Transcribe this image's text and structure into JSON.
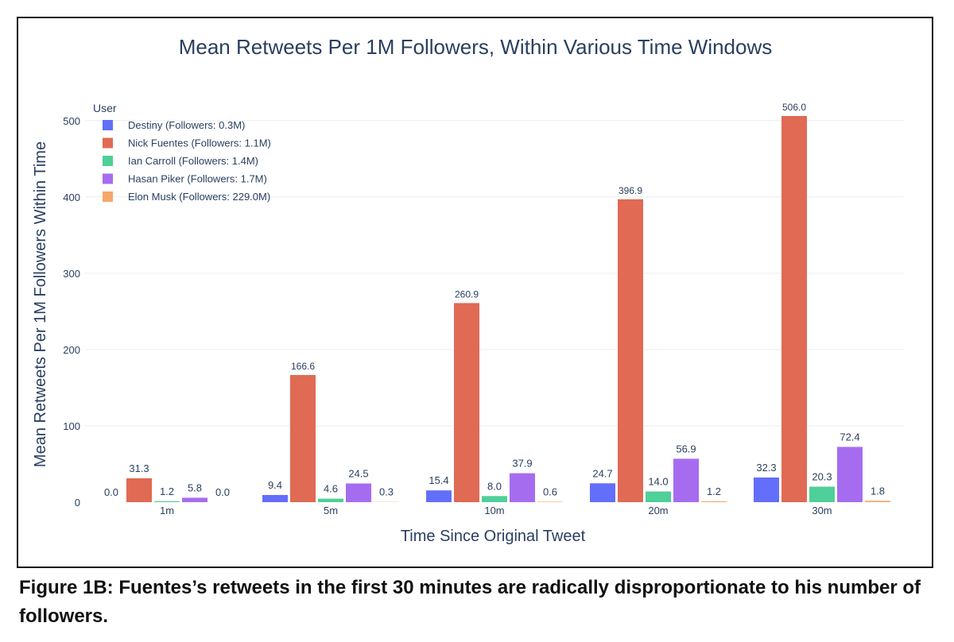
{
  "chart_data": {
    "type": "bar",
    "title": "Mean Retweets Per 1M Followers, Within Various Time Windows",
    "xlabel": "Time Since Original Tweet",
    "ylabel": "Mean Retweets Per 1M Followers Within Time",
    "categories": [
      "1m",
      "5m",
      "10m",
      "20m",
      "30m"
    ],
    "ylim": [
      0,
      520
    ],
    "yticks": [
      0,
      100,
      200,
      300,
      400,
      500
    ],
    "grid": true,
    "legend_title": "User",
    "legend_position": "top-left",
    "series": [
      {
        "name": "Destiny (Followers: 0.3M)",
        "color": "#636efa",
        "values": [
          0.0,
          9.4,
          15.4,
          24.7,
          32.3
        ],
        "labels": [
          "0.0",
          "9.4",
          "15.4",
          "24.7",
          "32.3"
        ]
      },
      {
        "name": "Nick Fuentes (Followers: 1.1M)",
        "color": "#e06a53",
        "values": [
          31.3,
          166.6,
          260.9,
          396.9,
          506.0
        ],
        "labels": [
          "31.3",
          "166.6",
          "260.9",
          "396.9",
          "506.0"
        ]
      },
      {
        "name": "Ian Carroll (Followers: 1.4M)",
        "color": "#4fcf99",
        "values": [
          1.2,
          4.6,
          8.0,
          14.0,
          20.3
        ],
        "labels": [
          "1.2",
          "4.6",
          "8.0",
          "14.0",
          "20.3"
        ]
      },
      {
        "name": "Hasan Piker (Followers: 1.7M)",
        "color": "#a66cf0",
        "values": [
          5.8,
          24.5,
          37.9,
          56.9,
          72.4
        ],
        "labels": [
          "5.8",
          "24.5",
          "37.9",
          "56.9",
          "72.4"
        ]
      },
      {
        "name": "Elon Musk (Followers: 229.0M)",
        "color": "#f5a86a",
        "values": [
          0.0,
          0.3,
          0.6,
          1.2,
          1.8
        ],
        "labels": [
          "0.0",
          "0.3",
          "0.6",
          "1.2",
          "1.8"
        ]
      }
    ]
  },
  "caption": "Figure 1B: Fuentes’s retweets in the first 30 minutes are radically disproportionate to his number of followers."
}
